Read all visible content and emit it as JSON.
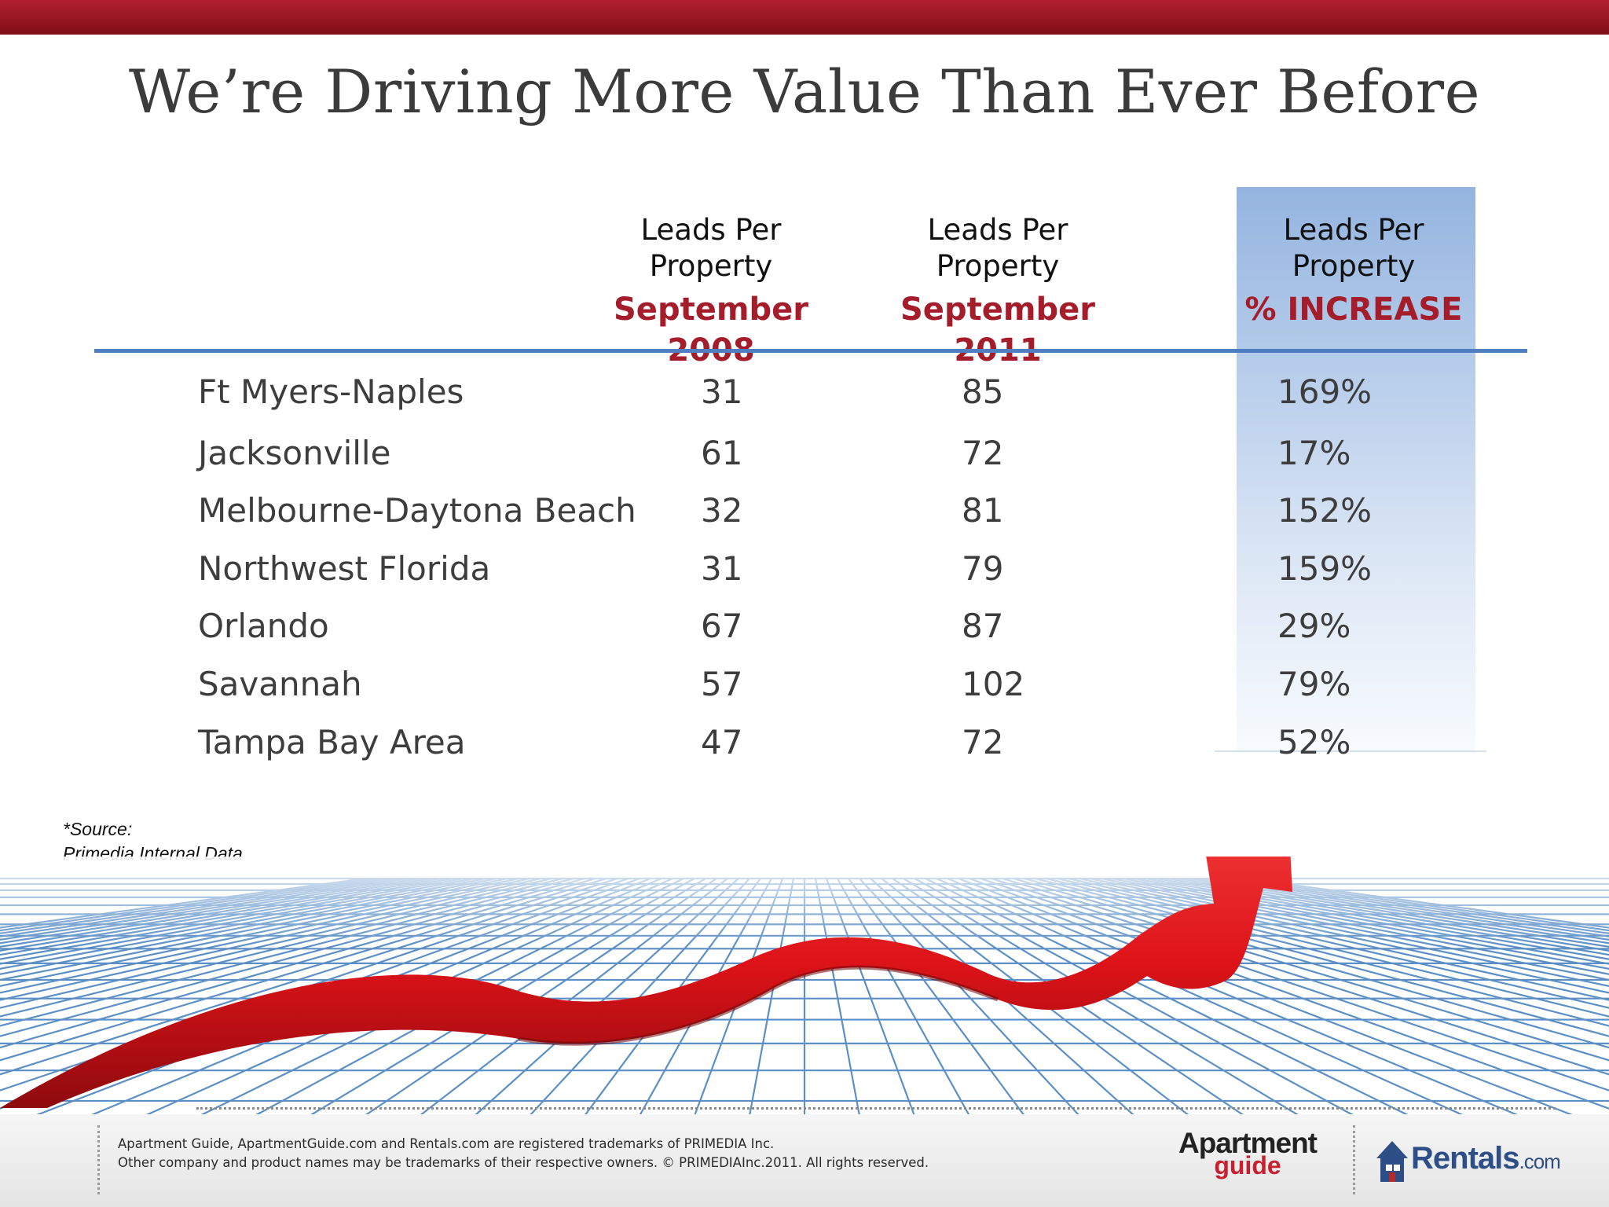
{
  "title": "We’re Driving More Value Than Ever Before",
  "columns": [
    {
      "line1": "Leads Per",
      "line2": "Property",
      "sub": "September 2008"
    },
    {
      "line1": "Leads Per",
      "line2": "Property",
      "sub": "September 2011"
    },
    {
      "line1": "Leads Per",
      "line2": "Property",
      "sub": "% INCREASE"
    }
  ],
  "chart_data": {
    "type": "table",
    "columns": [
      "",
      "Leads Per Property September 2008",
      "Leads Per Property September 2011",
      "Leads Per Property % INCREASE"
    ],
    "rows": [
      {
        "market": "Ft Myers-Naples",
        "sep2008": 31,
        "sep2011": 85,
        "increase": "169%"
      },
      {
        "market": "Jacksonville",
        "sep2008": 61,
        "sep2011": 72,
        "increase": "17%"
      },
      {
        "market": "Melbourne-Daytona Beach",
        "sep2008": 32,
        "sep2011": 81,
        "increase": "152%"
      },
      {
        "market": "Northwest Florida",
        "sep2008": 31,
        "sep2011": 79,
        "increase": "159%"
      },
      {
        "market": "Orlando",
        "sep2008": 67,
        "sep2011": 87,
        "increase": "29%"
      },
      {
        "market": "Savannah",
        "sep2008": 57,
        "sep2011": 102,
        "increase": "79%"
      },
      {
        "market": "Tampa Bay Area",
        "sep2008": 47,
        "sep2011": 72,
        "increase": "52%"
      }
    ],
    "highlighted_column": "% INCREASE"
  },
  "source": {
    "line1": "*Source:",
    "line2": "Primedia Internal Data"
  },
  "footer": {
    "line1": "Apartment Guide, ApartmentGuide.com and Rentals.com are registered trademarks of PRIMEDIA Inc.",
    "line2": "Other company and product names may be trademarks of their respective owners. © PRIMEDIAInc.2011. All rights reserved."
  },
  "logos": {
    "apartment_guide": {
      "word1": "Apartment",
      "word2": "guide"
    },
    "rentals": {
      "name": "Rentals",
      "suffix": ".com"
    }
  },
  "colors": {
    "accent_red": "#a51c2a",
    "rule_blue": "#4f7fc0",
    "highlight_blue": "#94b4df",
    "arrow_red": "#e3131b"
  }
}
